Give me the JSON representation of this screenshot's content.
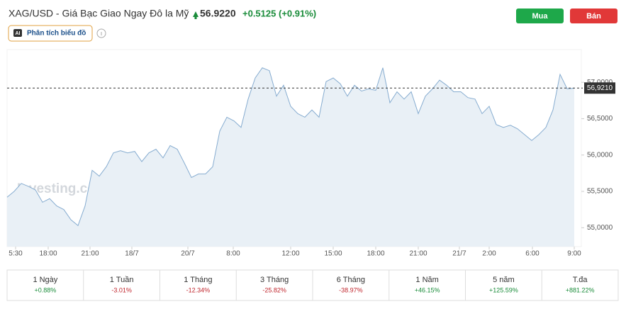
{
  "header": {
    "title": "XAG/USD - Giá Bạc Giao Ngay Đô la Mỹ",
    "price": "56.9220",
    "change": "+0.5125",
    "change_pct": "(+0.91%)",
    "buy": "Mua",
    "sell": "Bán",
    "ai_icon": "AI",
    "analysis": "Phân tích biểu đồ"
  },
  "chart_data": {
    "type": "area",
    "watermark": "Investing.com",
    "color": "#86acd0",
    "fill": "#e9f0f6",
    "values": [
      55.42,
      55.5,
      55.61,
      55.57,
      55.52,
      55.35,
      55.4,
      55.3,
      55.25,
      55.11,
      55.03,
      55.3,
      55.79,
      55.71,
      55.84,
      56.03,
      56.06,
      56.03,
      56.05,
      55.91,
      56.03,
      56.08,
      55.96,
      56.13,
      56.08,
      55.89,
      55.69,
      55.74,
      55.74,
      55.84,
      56.33,
      56.52,
      56.47,
      56.38,
      56.77,
      57.06,
      57.2,
      57.16,
      56.81,
      56.96,
      56.67,
      56.57,
      56.52,
      56.62,
      56.52,
      57.01,
      57.06,
      56.98,
      56.81,
      56.96,
      56.88,
      56.91,
      56.89,
      57.2,
      56.72,
      56.87,
      56.77,
      56.87,
      56.57,
      56.81,
      56.91,
      57.03,
      56.96,
      56.87,
      56.87,
      56.79,
      56.77,
      56.57,
      56.67,
      56.42,
      56.38,
      56.41,
      56.36,
      56.28,
      56.2,
      56.28,
      56.38,
      56.62,
      57.11,
      56.91,
      56.92
    ],
    "xlim": [
      0,
      80
    ],
    "xticks": [
      {
        "value": 1.2,
        "label": "5:30"
      },
      {
        "value": 5.8,
        "label": "18:00"
      },
      {
        "value": 11.7,
        "label": "21:00"
      },
      {
        "value": 17.6,
        "label": "18/7"
      },
      {
        "value": 25.5,
        "label": "20/7"
      },
      {
        "value": 31.9,
        "label": "8:00"
      },
      {
        "value": 40,
        "label": "12:00"
      },
      {
        "value": 46,
        "label": "15:00"
      },
      {
        "value": 52,
        "label": "18:00"
      },
      {
        "value": 58,
        "label": "21:00"
      },
      {
        "value": 63.8,
        "label": "21/7"
      },
      {
        "value": 68,
        "label": "2:00"
      },
      {
        "value": 74.1,
        "label": "6:00"
      },
      {
        "value": 80,
        "label": "9:00"
      }
    ],
    "ylim": [
      54.74,
      57.45
    ],
    "yticks": [
      {
        "value": 55,
        "label": "55,0000"
      },
      {
        "value": 55.5,
        "label": "55,5000"
      },
      {
        "value": 56,
        "label": "56,0000"
      },
      {
        "value": 56.5,
        "label": "56,5000"
      },
      {
        "value": 57,
        "label": "57,0000"
      }
    ],
    "current": {
      "value": 56.921,
      "label": "56,9210"
    }
  },
  "periods": [
    {
      "label": "1 Ngày",
      "change": "+0.88%"
    },
    {
      "label": "1 Tuần",
      "change": "-3.01%"
    },
    {
      "label": "1 Tháng",
      "change": "-12.34%"
    },
    {
      "label": "3 Tháng",
      "change": "-25.82%"
    },
    {
      "label": "6 Tháng",
      "change": "-38.97%"
    },
    {
      "label": "1 Năm",
      "change": "+46.15%"
    },
    {
      "label": "5 năm",
      "change": "+125.59%"
    },
    {
      "label": "T.đa",
      "change": "+881.22%"
    }
  ]
}
